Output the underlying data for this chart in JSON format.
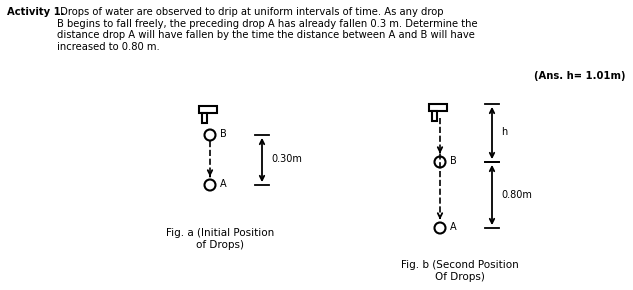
{
  "title_bold": "Activity 1.",
  "title_rest": " Drops of water are observed to drip at uniform intervals of time. As any drop\nB begins to fall freely, the preceding drop A has already fallen 0.3 m. Determine the\ndistance drop A will have fallen by the time the distance between A and B will have\nincreased to 0.80 m.",
  "answer": "(Ans. h= 1.01m)",
  "fig_a_label": "Fig. a (Initial Position\nof Drops)",
  "fig_b_label": "Fig. b (Second Position\nOf Drops)",
  "label_030": "0.30m",
  "label_080": "0.80m",
  "label_h": "h",
  "label_A": "A",
  "label_B": "B",
  "bg_color": "#ffffff",
  "text_color": "#000000",
  "fig_width": 6.33,
  "fig_height": 2.9,
  "dpi": 100
}
